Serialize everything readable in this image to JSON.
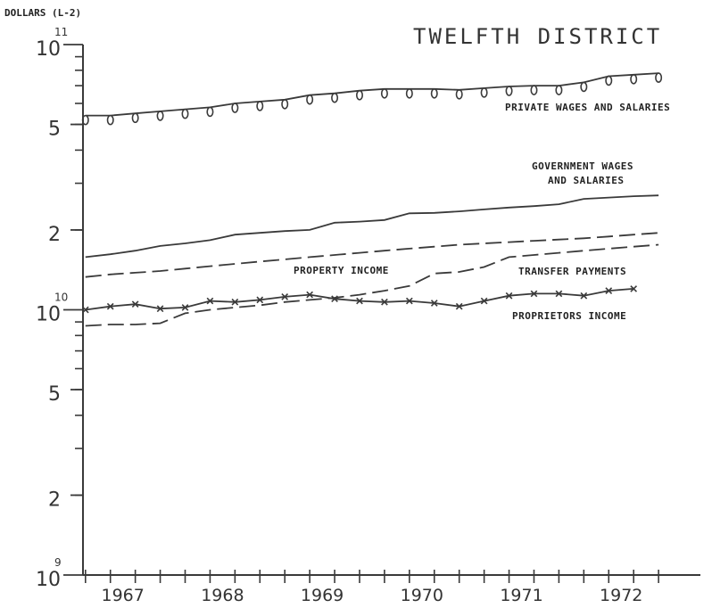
{
  "chart_data": {
    "type": "line",
    "title": "TWELFTH DISTRICT",
    "ylabel": "DOLLARS (L-2)",
    "xlabel": "",
    "yscale": "log",
    "ylim": [
      1000000000,
      100000000000
    ],
    "xlim": [
      1966.6,
      1972.75
    ],
    "y_ticks": [
      {
        "value": 100000000000,
        "base": "10",
        "exp": "11"
      },
      {
        "value": 50000000000,
        "base": "5",
        "exp": ""
      },
      {
        "value": 20000000000,
        "base": "2",
        "exp": ""
      },
      {
        "value": 10000000000,
        "base": "10",
        "exp": "10"
      },
      {
        "value": 5000000000,
        "base": "5",
        "exp": ""
      },
      {
        "value": 2000000000,
        "base": "2",
        "exp": ""
      },
      {
        "value": 1000000000,
        "base": "10",
        "exp": "9"
      }
    ],
    "x_ticks": [
      {
        "label": "1967",
        "value": 1967.0
      },
      {
        "label": "1968",
        "value": 1968.0
      },
      {
        "label": "1969",
        "value": 1969.0
      },
      {
        "label": "1970",
        "value": 1970.0
      },
      {
        "label": "1971",
        "value": 1971.0
      },
      {
        "label": "1972",
        "value": 1972.0
      }
    ],
    "x": [
      1966.625,
      1966.875,
      1967.125,
      1967.375,
      1967.625,
      1967.875,
      1968.125,
      1968.375,
      1968.625,
      1968.875,
      1969.125,
      1969.375,
      1969.625,
      1969.875,
      1970.125,
      1970.375,
      1970.625,
      1970.875,
      1971.125,
      1971.375,
      1971.625,
      1971.875,
      1972.125,
      1972.375
    ],
    "series": [
      {
        "name": "PRIVATE WAGES AND SALARIES",
        "label_lines": [
          "PRIVATE WAGES AND SALARIES"
        ],
        "style": "solid-circle",
        "values": [
          54000000000,
          54000000000,
          55000000000,
          56000000000,
          57000000000,
          58000000000,
          60000000000,
          61000000000,
          62000000000,
          64500000000,
          65500000000,
          67000000000,
          68000000000,
          68000000000,
          68000000000,
          67500000000,
          68500000000,
          69500000000,
          70000000000,
          70000000000,
          72000000000,
          76000000000,
          77000000000,
          78000000000
        ]
      },
      {
        "name": "GOVERNMENT WAGES AND SALARIES",
        "label_lines": [
          "GOVERNMENT WAGES",
          "AND SALARIES"
        ],
        "style": "solid",
        "values": [
          15800000000,
          16200000000,
          16700000000,
          17400000000,
          17800000000,
          18300000000,
          19200000000,
          19500000000,
          19800000000,
          20000000000,
          21300000000,
          21500000000,
          21800000000,
          23100000000,
          23200000000,
          23500000000,
          23900000000,
          24300000000,
          24600000000,
          25000000000,
          26200000000,
          26500000000,
          26800000000,
          27000000000
        ]
      },
      {
        "name": "PROPERTY INCOME",
        "label_lines": [
          "PROPERTY INCOME"
        ],
        "style": "dashed",
        "values": [
          13300000000,
          13600000000,
          13800000000,
          14000000000,
          14300000000,
          14600000000,
          14900000000,
          15200000000,
          15500000000,
          15800000000,
          16100000000,
          16400000000,
          16700000000,
          17000000000,
          17300000000,
          17600000000,
          17800000000,
          18000000000,
          18200000000,
          18400000000,
          18600000000,
          18900000000,
          19200000000,
          19500000000
        ]
      },
      {
        "name": "TRANSFER PAYMENTS",
        "label_lines": [
          "TRANSFER PAYMENTS"
        ],
        "style": "dashed",
        "values": [
          8700000000,
          8800000000,
          8800000000,
          8900000000,
          9700000000,
          10000000000,
          10200000000,
          10400000000,
          10700000000,
          10900000000,
          11100000000,
          11400000000,
          11800000000,
          12300000000,
          13700000000,
          13900000000,
          14500000000,
          15800000000,
          16100000000,
          16400000000,
          16700000000,
          17000000000,
          17300000000,
          17600000000
        ]
      },
      {
        "name": "PROPRIETORS INCOME",
        "label_lines": [
          "PROPRIETORS INCOME"
        ],
        "style": "solid-x",
        "values": [
          10000000000,
          10300000000,
          10500000000,
          10100000000,
          10200000000,
          10800000000,
          10700000000,
          10900000000,
          11200000000,
          11400000000,
          11000000000,
          10800000000,
          10700000000,
          10800000000,
          10600000000,
          10300000000,
          10800000000,
          11300000000,
          11500000000,
          11500000000,
          11300000000,
          11800000000,
          12000000000,
          null
        ]
      }
    ],
    "grid": false,
    "legend": "inline labels"
  }
}
